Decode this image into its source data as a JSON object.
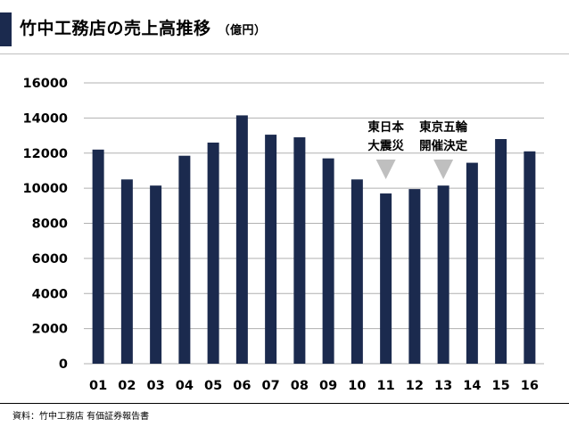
{
  "header": {
    "title": "竹中工務店の売上高推移",
    "unit": "（億円）"
  },
  "footer": {
    "source": "資料：竹中工務店 有価証券報告書"
  },
  "colors": {
    "bar": "#1b2a4e",
    "accent": "#1b2a4e",
    "marker": "#bfbfbf",
    "grid": "#b0b0b0"
  },
  "chart_data": {
    "type": "bar",
    "title": "竹中工務店の売上高推移",
    "ylabel": "",
    "xlabel": "",
    "categories": [
      "01",
      "02",
      "03",
      "04",
      "05",
      "06",
      "07",
      "08",
      "09",
      "10",
      "11",
      "12",
      "13",
      "14",
      "15",
      "16"
    ],
    "values": [
      12200,
      10500,
      10150,
      11850,
      12600,
      14150,
      13050,
      12900,
      11700,
      10500,
      9700,
      9950,
      10150,
      11450,
      12800,
      12100
    ],
    "ylim": [
      0,
      16000
    ],
    "yticks": [
      0,
      2000,
      4000,
      6000,
      8000,
      10000,
      12000,
      14000,
      16000
    ],
    "grid": true,
    "annotations": [
      {
        "category": "11",
        "lines": [
          "東日本",
          "大震災"
        ]
      },
      {
        "category": "13",
        "lines": [
          "東京五輪",
          "開催決定"
        ]
      }
    ]
  }
}
